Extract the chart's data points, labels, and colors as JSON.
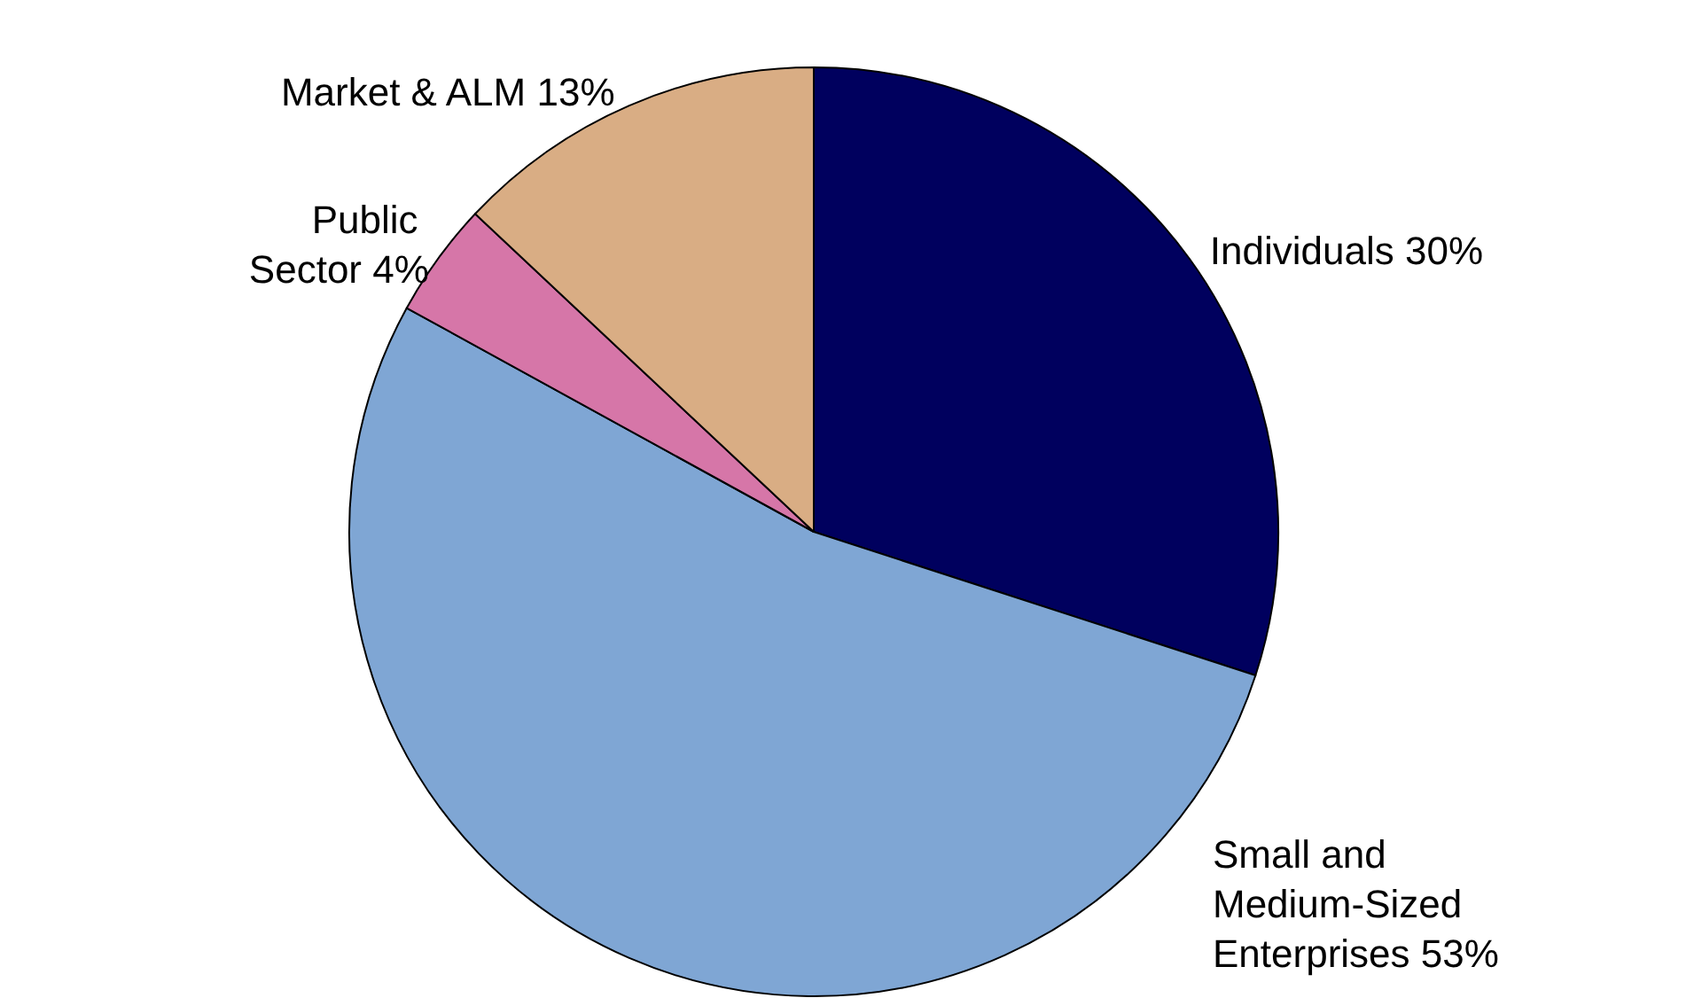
{
  "chart_data": {
    "type": "pie",
    "categories": [
      "Individuals",
      "Small and Medium-Sized Enterprises",
      "Public Sector",
      "Market & ALM"
    ],
    "values": [
      30,
      53,
      4,
      13
    ],
    "value_labels": [
      "30%",
      "53%",
      "4%",
      "13%"
    ],
    "colors": [
      "#00005e",
      "#7fa6d4",
      "#d676a8",
      "#d9ad84"
    ],
    "legend": false
  }
}
